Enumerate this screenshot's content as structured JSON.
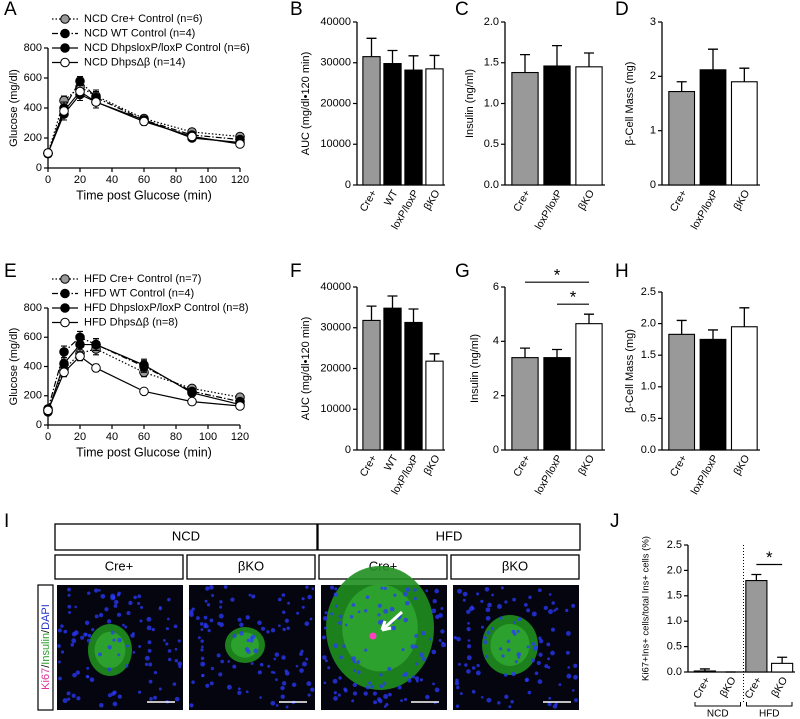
{
  "chart_data": [
    {
      "type": "line",
      "panel": "A",
      "xlabel": "Time post Glucose (min)",
      "ylabel": "Glucose (mg/dl)",
      "x": [
        0,
        10,
        20,
        30,
        60,
        90,
        120
      ],
      "xlim": [
        0,
        120
      ],
      "xticks": [
        0,
        20,
        40,
        60,
        80,
        100,
        120
      ],
      "ylim": [
        0,
        800
      ],
      "yticks": [
        0,
        200,
        400,
        600,
        800
      ],
      "legend": "top-left",
      "series": [
        {
          "name": "NCD Cre+ Control (n=6)",
          "color": "#999999",
          "line_style": "dotted",
          "values": [
            100,
            450,
            540,
            480,
            330,
            240,
            210
          ],
          "errors": [
            10,
            30,
            35,
            40,
            20,
            20,
            20
          ]
        },
        {
          "name": "NCD WT Control (n=4)",
          "color": "#000000",
          "line_style": "dashdot",
          "values": [
            95,
            400,
            580,
            470,
            320,
            220,
            190
          ],
          "errors": [
            10,
            40,
            30,
            40,
            20,
            20,
            20
          ]
        },
        {
          "name": "NCD DhpsloxP/loxP Control (n=6)",
          "color": "#000000",
          "line_style": "solid",
          "values": [
            100,
            360,
            490,
            440,
            320,
            200,
            170
          ],
          "errors": [
            10,
            40,
            40,
            40,
            25,
            20,
            20
          ]
        },
        {
          "name": "NCD DhpsΔβ (n=14)",
          "color": "#ffffff",
          "line_style": "solid",
          "values": [
            100,
            380,
            510,
            440,
            310,
            210,
            160
          ],
          "errors": [
            10,
            40,
            40,
            40,
            25,
            20,
            20
          ]
        }
      ]
    },
    {
      "type": "bar",
      "panel": "B",
      "ylabel": "AUC (mg/dl•120 min)",
      "categories": [
        "Cre+",
        "WT",
        "loxP/loxP",
        "βKO"
      ],
      "values": [
        31500,
        29800,
        28200,
        28500
      ],
      "errors": [
        4500,
        3200,
        3500,
        3300
      ],
      "colors": [
        "#999999",
        "#000000",
        "#000000",
        "#ffffff"
      ],
      "ylim": [
        0,
        40000
      ],
      "yticks": [
        0,
        10000,
        20000,
        30000,
        40000
      ]
    },
    {
      "type": "bar",
      "panel": "C",
      "ylabel": "Insulin (ng/ml)",
      "categories": [
        "Cre+",
        "loxP/loxP",
        "βKO"
      ],
      "values": [
        1.38,
        1.46,
        1.45
      ],
      "errors": [
        0.22,
        0.25,
        0.17
      ],
      "colors": [
        "#999999",
        "#000000",
        "#ffffff"
      ],
      "ylim": [
        0,
        2
      ],
      "yticks": [
        {
          "value": 0,
          "label": "0.0"
        },
        0.5,
        {
          "value": 1,
          "label": "1.0"
        },
        1.5,
        {
          "value": 2,
          "label": "2.0"
        }
      ]
    },
    {
      "type": "bar",
      "panel": "D",
      "ylabel": "β-Cell Mass (mg)",
      "categories": [
        "Cre+",
        "loxP/loxP",
        "βKO"
      ],
      "values": [
        1.72,
        2.12,
        1.9
      ],
      "errors": [
        0.18,
        0.38,
        0.25
      ],
      "colors": [
        "#999999",
        "#000000",
        "#ffffff"
      ],
      "ylim": [
        0,
        3
      ],
      "yticks": [
        0,
        1,
        2,
        3
      ]
    },
    {
      "type": "line",
      "panel": "E",
      "xlabel": "Time post Glucose (min)",
      "ylabel": "Glucose (mg/dl)",
      "x": [
        0,
        10,
        20,
        30,
        60,
        90,
        120
      ],
      "xlim": [
        0,
        120
      ],
      "xticks": [
        0,
        20,
        40,
        60,
        80,
        100,
        120
      ],
      "ylim": [
        0,
        800
      ],
      "yticks": [
        0,
        200,
        400,
        600,
        800
      ],
      "legend": "top-left",
      "series": [
        {
          "name": "HFD Cre+ Control (n=7)",
          "color": "#999999",
          "line_style": "dotted",
          "values": [
            100,
            380,
            490,
            520,
            360,
            250,
            190
          ],
          "errors": [
            15,
            40,
            40,
            40,
            30,
            20,
            20
          ]
        },
        {
          "name": "HFD WT Control (n=4)",
          "color": "#000000",
          "line_style": "dashdot",
          "values": [
            110,
            500,
            600,
            550,
            400,
            230,
            160
          ],
          "errors": [
            15,
            40,
            40,
            40,
            40,
            20,
            20
          ]
        },
        {
          "name": "HFD DhpsloxP/loxP Control (n=8)",
          "color": "#000000",
          "line_style": "solid",
          "values": [
            90,
            420,
            550,
            550,
            410,
            220,
            140
          ],
          "errors": [
            15,
            40,
            50,
            40,
            40,
            20,
            20
          ]
        },
        {
          "name": "HFD DhpsΔβ (n=8)",
          "color": "#ffffff",
          "line_style": "solid",
          "values": [
            100,
            360,
            470,
            390,
            230,
            160,
            130
          ],
          "errors": [
            15,
            30,
            30,
            25,
            20,
            15,
            15
          ]
        }
      ]
    },
    {
      "type": "bar",
      "panel": "F",
      "ylabel": "AUC (mg/dl•120 min)",
      "categories": [
        "Cre+",
        "WT",
        "loxP/loxP",
        "βKO"
      ],
      "values": [
        31800,
        34800,
        31300,
        21800
      ],
      "errors": [
        3500,
        3000,
        3300,
        1800
      ],
      "colors": [
        "#999999",
        "#000000",
        "#000000",
        "#ffffff"
      ],
      "ylim": [
        0,
        40000
      ],
      "yticks": [
        0,
        10000,
        20000,
        30000,
        40000
      ]
    },
    {
      "type": "bar",
      "panel": "G",
      "ylabel": "Insulin (ng/ml)",
      "categories": [
        "Cre+",
        "loxP/loxP",
        "βKO"
      ],
      "values": [
        3.4,
        3.4,
        4.65
      ],
      "errors": [
        0.35,
        0.3,
        0.35
      ],
      "colors": [
        "#999999",
        "#000000",
        "#ffffff"
      ],
      "ylim": [
        0,
        6
      ],
      "yticks": [
        0,
        2,
        4,
        6
      ],
      "significance": [
        {
          "label": "*",
          "between": [
            0,
            2
          ]
        },
        {
          "label": "*",
          "between": [
            1,
            2
          ]
        }
      ]
    },
    {
      "type": "bar",
      "panel": "H",
      "ylabel": "β-Cell Mass (mg)",
      "categories": [
        "Cre+",
        "loxP/loxP",
        "βKO"
      ],
      "values": [
        1.83,
        1.75,
        1.95
      ],
      "errors": [
        0.22,
        0.15,
        0.3
      ],
      "colors": [
        "#999999",
        "#000000",
        "#ffffff"
      ],
      "ylim": [
        0,
        2.5
      ],
      "yticks": [
        {
          "value": 0,
          "label": "0.0"
        },
        0.5,
        {
          "value": 1,
          "label": "1.0"
        },
        1.5,
        {
          "value": 2,
          "label": "2.0"
        },
        2.5
      ]
    },
    {
      "type": "bar",
      "panel": "J",
      "ylabel": "Ki67+Ins+ cells/total Ins+ cells (%)",
      "categories": [
        "Cre+",
        "βKO",
        "Cre+",
        "βKO"
      ],
      "values": [
        0.02,
        0,
        1.8,
        0.17
      ],
      "errors": [
        0.04,
        0,
        0.12,
        0.12
      ],
      "colors": [
        "#999999",
        "#ffffff",
        "#999999",
        "#ffffff"
      ],
      "ylim": [
        0,
        2.5
      ],
      "yticks": [
        {
          "value": 0,
          "label": "0.0"
        },
        0.5,
        {
          "value": 1,
          "label": "1.0"
        },
        1.5,
        {
          "value": 2,
          "label": "2.0"
        },
        2.5
      ],
      "groups": [
        {
          "label": "NCD",
          "categories": [
            0,
            1
          ]
        },
        {
          "label": "HFD",
          "categories": [
            2,
            3
          ]
        }
      ],
      "significance": [
        {
          "label": "*",
          "between": [
            2,
            3
          ]
        }
      ]
    }
  ],
  "panel_i": {
    "panel": "I",
    "groups": [
      "NCD",
      "HFD"
    ],
    "columns": [
      "Cre+",
      "βKO",
      "Cre+",
      "βKO"
    ],
    "stain": [
      "Ki67",
      "/",
      "Insulin",
      "/",
      "DAPI"
    ],
    "stain_colors": [
      "#e0309a",
      "#000000",
      "#2aa02a",
      "#000000",
      "#2233cc"
    ]
  }
}
